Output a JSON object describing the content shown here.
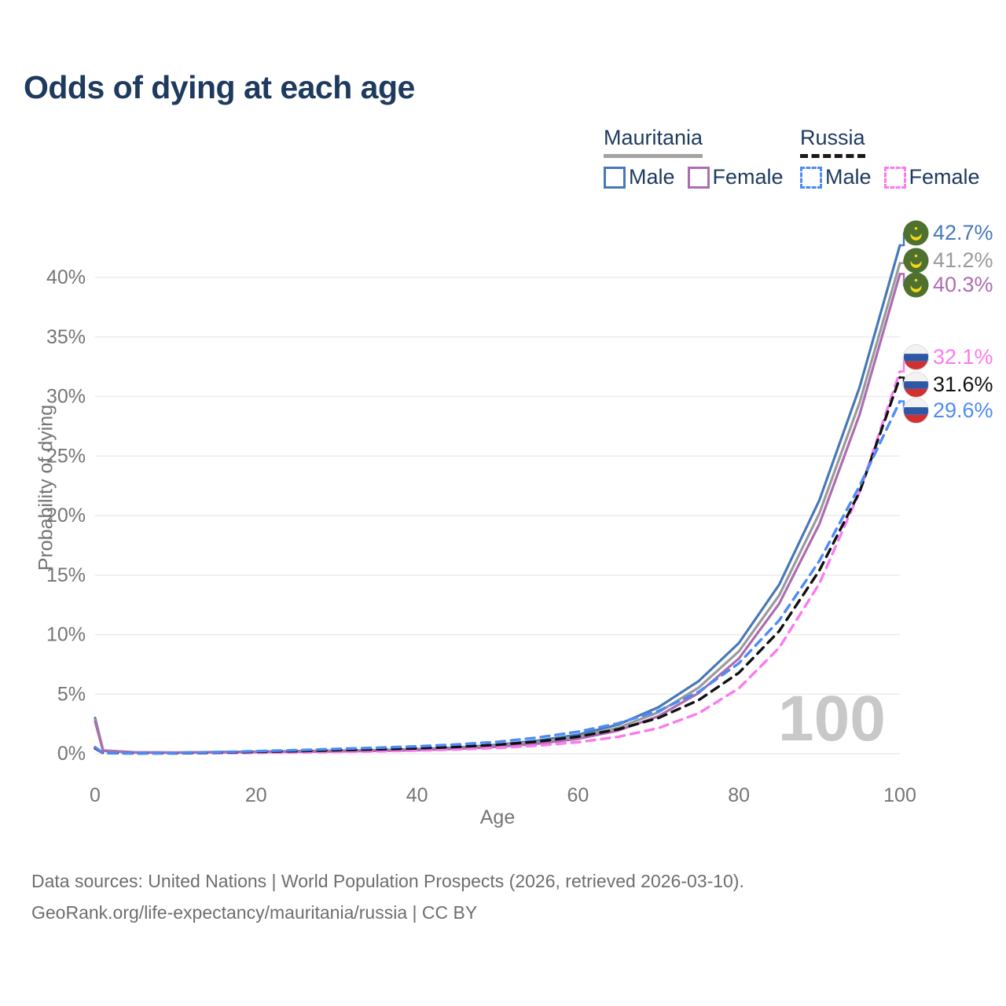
{
  "title": "Odds of dying at each age",
  "legend": {
    "groups": [
      {
        "name": "Mauritania",
        "line_style": "solid",
        "underline_color": "#a3a3a3",
        "items": [
          {
            "label": "Male",
            "color": "#4678b8"
          },
          {
            "label": "Female",
            "color": "#ad6cb0"
          }
        ]
      },
      {
        "name": "Russia",
        "line_style": "dashed",
        "underline_color": "#1a1a1a",
        "items": [
          {
            "label": "Male",
            "color": "#4d8bf5"
          },
          {
            "label": "Female",
            "color": "#fb7af0"
          }
        ]
      }
    ]
  },
  "chart_data": {
    "type": "line",
    "title": "Odds of dying at each age",
    "xlabel": "Age",
    "ylabel": "Probability of dying",
    "xlim": [
      0,
      100
    ],
    "ylim": [
      0,
      44
    ],
    "x_ticks": [
      0,
      20,
      40,
      60,
      80,
      100
    ],
    "y_ticks": [
      0,
      5,
      10,
      15,
      20,
      25,
      30,
      35,
      40
    ],
    "y_tick_suffix": "%",
    "grid": "horizontal",
    "ages": [
      0,
      1,
      5,
      10,
      15,
      20,
      25,
      30,
      35,
      40,
      45,
      50,
      55,
      60,
      65,
      70,
      75,
      80,
      85,
      90,
      95,
      100
    ],
    "series": [
      {
        "name": "Mauritania Male",
        "country": "mauritania",
        "sex": "male",
        "color": "#4678b8",
        "dash": false,
        "values": [
          3.0,
          0.28,
          0.12,
          0.1,
          0.14,
          0.18,
          0.22,
          0.26,
          0.3,
          0.38,
          0.52,
          0.75,
          1.1,
          1.6,
          2.45,
          3.9,
          6.1,
          9.3,
          14.2,
          21.3,
          30.8,
          42.7
        ],
        "end_value_pct": 42.7
      },
      {
        "name": "Mauritania Total",
        "country": "mauritania",
        "sex": "total",
        "color": "#9a9a9a",
        "dash": false,
        "values": [
          2.85,
          0.26,
          0.11,
          0.09,
          0.13,
          0.16,
          0.19,
          0.23,
          0.27,
          0.34,
          0.46,
          0.66,
          0.97,
          1.42,
          2.18,
          3.48,
          5.55,
          8.6,
          13.3,
          20.2,
          29.5,
          41.2
        ],
        "end_value_pct": 41.2
      },
      {
        "name": "Mauritania Female",
        "country": "mauritania",
        "sex": "female",
        "color": "#ad6cb0",
        "dash": false,
        "values": [
          2.7,
          0.24,
          0.1,
          0.08,
          0.11,
          0.13,
          0.16,
          0.19,
          0.24,
          0.3,
          0.41,
          0.58,
          0.85,
          1.25,
          1.95,
          3.15,
          5.1,
          8.0,
          12.6,
          19.3,
          28.5,
          40.3
        ],
        "end_value_pct": 40.3
      },
      {
        "name": "Russia Female",
        "country": "russia",
        "sex": "female",
        "color": "#fb7af0",
        "dash": true,
        "values": [
          0.42,
          0.05,
          0.03,
          0.03,
          0.05,
          0.08,
          0.11,
          0.15,
          0.2,
          0.27,
          0.36,
          0.49,
          0.68,
          0.97,
          1.42,
          2.15,
          3.4,
          5.5,
          8.9,
          14.3,
          22.0,
          32.1
        ],
        "end_value_pct": 32.1
      },
      {
        "name": "Russia Total",
        "country": "russia",
        "sex": "total",
        "color": "#111111",
        "dash": true,
        "values": [
          0.48,
          0.05,
          0.03,
          0.04,
          0.09,
          0.16,
          0.22,
          0.29,
          0.36,
          0.45,
          0.57,
          0.75,
          1.02,
          1.43,
          2.05,
          3.0,
          4.5,
          6.8,
          10.3,
          15.4,
          22.0,
          31.6
        ],
        "end_value_pct": 31.6
      },
      {
        "name": "Russia Male",
        "country": "russia",
        "sex": "male",
        "color": "#4d8bf5",
        "dash": true,
        "values": [
          0.55,
          0.06,
          0.04,
          0.05,
          0.12,
          0.22,
          0.3,
          0.4,
          0.5,
          0.62,
          0.78,
          1.0,
          1.35,
          1.85,
          2.55,
          3.6,
          5.2,
          7.6,
          11.2,
          16.2,
          22.5,
          29.6
        ],
        "end_value_pct": 29.6
      }
    ]
  },
  "end_labels": [
    {
      "value": "42.7%",
      "color": "#4678b8",
      "flag": "mauritania"
    },
    {
      "value": "41.2%",
      "color": "#9a9a9a",
      "flag": "mauritania"
    },
    {
      "value": "40.3%",
      "color": "#ad6cb0",
      "flag": "mauritania"
    },
    {
      "value": "32.1%",
      "color": "#fb7af0",
      "flag": "russia"
    },
    {
      "value": "31.6%",
      "color": "#111111",
      "flag": "russia"
    },
    {
      "value": "29.6%",
      "color": "#4d8bf5",
      "flag": "russia"
    }
  ],
  "watermark": "100",
  "footer": {
    "line1": "Data sources: United Nations | World Population Prospects (2026, retrieved 2026-03-10).",
    "line2": "GeoRank.org/life-expectancy/mauritania/russia | CC BY"
  }
}
